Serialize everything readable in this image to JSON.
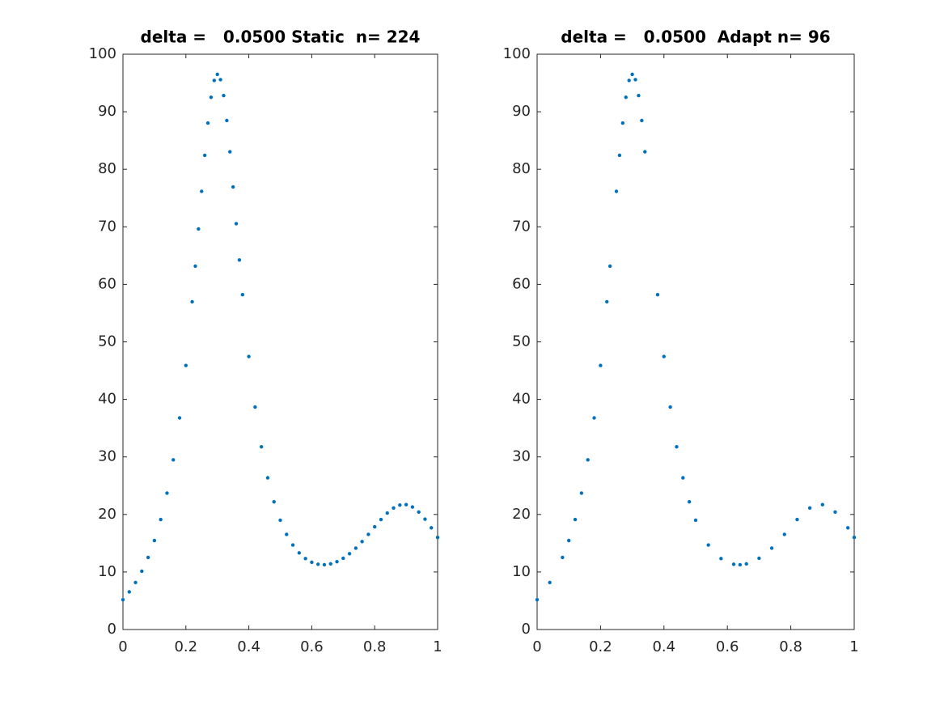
{
  "chart_data": [
    {
      "type": "scatter",
      "title": "delta =   0.0500 Static  n= 224",
      "color": "#0072bd",
      "x": [
        0,
        0.02,
        0.04,
        0.06,
        0.08,
        0.1,
        0.12,
        0.14,
        0.16,
        0.18,
        0.2,
        0.22,
        0.23,
        0.24,
        0.25,
        0.26,
        0.27,
        0.28,
        0.29,
        0.3,
        0.31,
        0.32,
        0.33,
        0.34,
        0.35,
        0.36,
        0.37,
        0.38,
        0.4,
        0.42,
        0.44,
        0.46,
        0.48,
        0.5,
        0.52,
        0.54,
        0.56,
        0.58,
        0.6,
        0.62,
        0.64,
        0.66,
        0.68,
        0.7,
        0.72,
        0.74,
        0.76,
        0.78,
        0.8,
        0.82,
        0.84,
        0.86,
        0.88,
        0.9,
        0.92,
        0.94,
        0.96,
        0.98,
        1
      ],
      "values": [
        5.18,
        6.54,
        8.17,
        10.13,
        12.53,
        15.47,
        19.12,
        23.71,
        29.49,
        36.78,
        45.89,
        56.97,
        63.16,
        69.63,
        76.16,
        82.43,
        88.03,
        92.51,
        95.44,
        96.5,
        95.58,
        92.81,
        88.48,
        83.04,
        76.92,
        70.55,
        64.23,
        58.2,
        47.45,
        38.67,
        31.76,
        26.37,
        22.2,
        19,
        16.53,
        14.69,
        13.32,
        12.33,
        11.69,
        11.34,
        11.26,
        11.41,
        11.79,
        12.38,
        13.18,
        14.15,
        15.29,
        16.54,
        17.85,
        19.12,
        20.25,
        21.13,
        21.64,
        21.7,
        21.29,
        20.42,
        19.18,
        17.67,
        16
      ],
      "xlim": [
        0,
        1
      ],
      "ylim": [
        0,
        100
      ],
      "xticks": [
        0,
        0.2,
        0.4,
        0.6,
        0.8,
        1
      ],
      "yticks": [
        0,
        10,
        20,
        30,
        40,
        50,
        60,
        70,
        80,
        90,
        100
      ]
    },
    {
      "type": "scatter",
      "title": "delta =   0.0500  Adapt n= 96",
      "color": "#0072bd",
      "x": [
        0,
        0.04,
        0.08,
        0.1,
        0.12,
        0.14,
        0.16,
        0.18,
        0.2,
        0.22,
        0.23,
        0.25,
        0.26,
        0.27,
        0.28,
        0.29,
        0.3,
        0.31,
        0.32,
        0.33,
        0.34,
        0.38,
        0.4,
        0.42,
        0.44,
        0.46,
        0.48,
        0.5,
        0.54,
        0.58,
        0.62,
        0.64,
        0.66,
        0.7,
        0.74,
        0.78,
        0.82,
        0.86,
        0.9,
        0.94,
        0.98,
        1
      ],
      "values": [
        5.18,
        8.17,
        12.53,
        15.47,
        19.12,
        23.71,
        29.49,
        36.78,
        45.89,
        56.97,
        63.16,
        76.16,
        82.43,
        88.03,
        92.51,
        95.44,
        96.5,
        95.58,
        92.81,
        88.48,
        83.04,
        58.2,
        47.45,
        38.67,
        31.76,
        26.37,
        22.2,
        19,
        14.69,
        12.33,
        11.34,
        11.26,
        11.41,
        12.38,
        14.15,
        16.54,
        19.12,
        21.13,
        21.7,
        20.42,
        17.67,
        16
      ],
      "xlim": [
        0,
        1
      ],
      "ylim": [
        0,
        100
      ],
      "xticks": [
        0,
        0.2,
        0.4,
        0.6,
        0.8,
        1
      ],
      "yticks": [
        0,
        10,
        20,
        30,
        40,
        50,
        60,
        70,
        80,
        90,
        100
      ]
    }
  ]
}
